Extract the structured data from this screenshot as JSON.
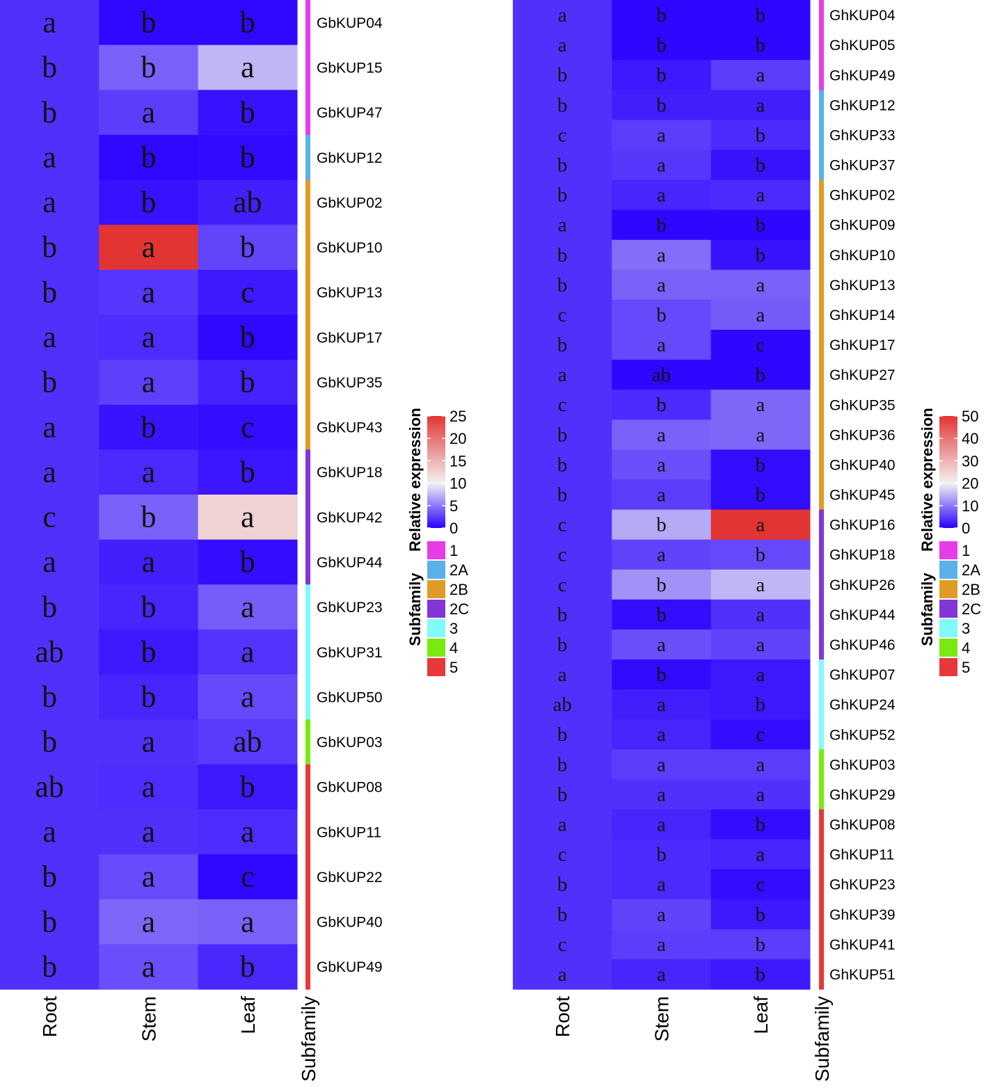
{
  "chart_data": [
    {
      "type": "heatmap",
      "columns": [
        "Root",
        "Stem",
        "Leaf"
      ],
      "annotation_column_label": "Subfamily",
      "color_scale": {
        "title": "Relative expression",
        "min": 0,
        "max": 25,
        "mid": 10,
        "ticks": [
          0,
          5,
          10,
          15,
          20,
          25
        ],
        "colors": {
          "low": "#2a00ff",
          "mid": "#f2f2f2",
          "high": "#e33434"
        }
      },
      "subfamily_legend": {
        "title": "Subfamily",
        "entries": [
          {
            "label": "1",
            "color": "#e83be8"
          },
          {
            "label": "2A",
            "color": "#5ab1ea"
          },
          {
            "label": "2B",
            "color": "#e09b24"
          },
          {
            "label": "2C",
            "color": "#8335d6"
          },
          {
            "label": "3",
            "color": "#7ffbfb"
          },
          {
            "label": "4",
            "color": "#79ea10"
          },
          {
            "label": "5",
            "color": "#e8373a"
          }
        ]
      },
      "rows": [
        {
          "gene": "GbKUP04",
          "subfamily": "1",
          "values": [
            2.0,
            0.3,
            0.3
          ],
          "letters": [
            "a",
            "b",
            "b"
          ]
        },
        {
          "gene": "GbKUP15",
          "subfamily": "1",
          "values": [
            2.0,
            4.0,
            7.5
          ],
          "letters": [
            "b",
            "b",
            "a"
          ]
        },
        {
          "gene": "GbKUP47",
          "subfamily": "1",
          "values": [
            2.0,
            2.5,
            0.7
          ],
          "letters": [
            "b",
            "a",
            "b"
          ]
        },
        {
          "gene": "GbKUP12",
          "subfamily": "2A",
          "values": [
            2.0,
            0.3,
            0.4
          ],
          "letters": [
            "a",
            "b",
            "b"
          ]
        },
        {
          "gene": "GbKUP02",
          "subfamily": "2B",
          "values": [
            2.0,
            0.7,
            1.3
          ],
          "letters": [
            "a",
            "b",
            "ab"
          ]
        },
        {
          "gene": "GbKUP10",
          "subfamily": "2B",
          "values": [
            2.0,
            25.0,
            2.8
          ],
          "letters": [
            "b",
            "a",
            "b"
          ]
        },
        {
          "gene": "GbKUP13",
          "subfamily": "2B",
          "values": [
            2.0,
            2.2,
            1.0
          ],
          "letters": [
            "b",
            "a",
            "c"
          ]
        },
        {
          "gene": "GbKUP17",
          "subfamily": "2B",
          "values": [
            2.0,
            1.8,
            0.3
          ],
          "letters": [
            "a",
            "a",
            "b"
          ]
        },
        {
          "gene": "GbKUP35",
          "subfamily": "2B",
          "values": [
            2.0,
            2.6,
            1.4
          ],
          "letters": [
            "b",
            "a",
            "b"
          ]
        },
        {
          "gene": "GbKUP43",
          "subfamily": "2B",
          "values": [
            2.0,
            0.8,
            0.5
          ],
          "letters": [
            "a",
            "b",
            "c"
          ]
        },
        {
          "gene": "GbKUP18",
          "subfamily": "2C",
          "values": [
            2.0,
            1.7,
            0.9
          ],
          "letters": [
            "a",
            "a",
            "b"
          ]
        },
        {
          "gene": "GbKUP42",
          "subfamily": "2C",
          "values": [
            2.0,
            4.0,
            12.5
          ],
          "letters": [
            "c",
            "b",
            "a"
          ]
        },
        {
          "gene": "GbKUP44",
          "subfamily": "2C",
          "values": [
            2.0,
            1.3,
            0.5
          ],
          "letters": [
            "a",
            "a",
            "b"
          ]
        },
        {
          "gene": "GbKUP23",
          "subfamily": "3",
          "values": [
            2.0,
            1.5,
            3.8
          ],
          "letters": [
            "b",
            "b",
            "a"
          ]
        },
        {
          "gene": "GbKUP31",
          "subfamily": "3",
          "values": [
            2.0,
            1.0,
            2.1
          ],
          "letters": [
            "ab",
            "b",
            "a"
          ]
        },
        {
          "gene": "GbKUP50",
          "subfamily": "3",
          "values": [
            2.0,
            1.5,
            3.0
          ],
          "letters": [
            "b",
            "b",
            "a"
          ]
        },
        {
          "gene": "GbKUP03",
          "subfamily": "4",
          "values": [
            2.0,
            2.0,
            2.4
          ],
          "letters": [
            "b",
            "a",
            "ab"
          ]
        },
        {
          "gene": "GbKUP08",
          "subfamily": "5",
          "values": [
            2.0,
            1.8,
            1.0
          ],
          "letters": [
            "ab",
            "a",
            "b"
          ]
        },
        {
          "gene": "GbKUP11",
          "subfamily": "5",
          "values": [
            2.0,
            2.0,
            1.8
          ],
          "letters": [
            "a",
            "a",
            "a"
          ]
        },
        {
          "gene": "GbKUP22",
          "subfamily": "5",
          "values": [
            2.0,
            3.1,
            0.3
          ],
          "letters": [
            "b",
            "a",
            "c"
          ]
        },
        {
          "gene": "GbKUP40",
          "subfamily": "5",
          "values": [
            2.0,
            4.2,
            4.0
          ],
          "letters": [
            "b",
            "a",
            "a"
          ]
        },
        {
          "gene": "GbKUP49",
          "subfamily": "5",
          "values": [
            2.0,
            3.2,
            1.6
          ],
          "letters": [
            "b",
            "a",
            "b"
          ]
        }
      ]
    },
    {
      "type": "heatmap",
      "columns": [
        "Root",
        "Stem",
        "Leaf"
      ],
      "annotation_column_label": "Subfamily",
      "color_scale": {
        "title": "Relative expression",
        "min": 0,
        "max": 50,
        "mid": 20,
        "ticks": [
          0,
          10,
          20,
          30,
          40,
          50
        ],
        "colors": {
          "low": "#2a00ff",
          "mid": "#f2f2f2",
          "high": "#e33434"
        }
      },
      "subfamily_legend": {
        "title": "Subfamily",
        "entries": [
          {
            "label": "1",
            "color": "#e83be8"
          },
          {
            "label": "2A",
            "color": "#5ab1ea"
          },
          {
            "label": "2B",
            "color": "#e09b24"
          },
          {
            "label": "2C",
            "color": "#8335d6"
          },
          {
            "label": "3",
            "color": "#7ffbfb"
          },
          {
            "label": "4",
            "color": "#79ea10"
          },
          {
            "label": "5",
            "color": "#e8373a"
          }
        ]
      },
      "rows": [
        {
          "gene": "GhKUP04",
          "subfamily": "1",
          "values": [
            4.0,
            0.5,
            0.5
          ],
          "letters": [
            "a",
            "b",
            "b"
          ]
        },
        {
          "gene": "GhKUP05",
          "subfamily": "1",
          "values": [
            4.0,
            0.5,
            0.5
          ],
          "letters": [
            "a",
            "b",
            "b"
          ]
        },
        {
          "gene": "GhKUP49",
          "subfamily": "1",
          "values": [
            4.0,
            2.0,
            5.0
          ],
          "letters": [
            "b",
            "b",
            "a"
          ]
        },
        {
          "gene": "GhKUP12",
          "subfamily": "2A",
          "values": [
            4.0,
            2.5,
            2.5
          ],
          "letters": [
            "b",
            "b",
            "a"
          ]
        },
        {
          "gene": "GhKUP33",
          "subfamily": "2A",
          "values": [
            4.0,
            5.0,
            3.5
          ],
          "letters": [
            "c",
            "a",
            "b"
          ]
        },
        {
          "gene": "GhKUP37",
          "subfamily": "2A",
          "values": [
            4.0,
            4.5,
            1.5
          ],
          "letters": [
            "b",
            "a",
            "b"
          ]
        },
        {
          "gene": "GhKUP02",
          "subfamily": "2B",
          "values": [
            4.0,
            3.0,
            3.5
          ],
          "letters": [
            "b",
            "a",
            "a"
          ]
        },
        {
          "gene": "GhKUP09",
          "subfamily": "2B",
          "values": [
            4.0,
            0.5,
            0.5
          ],
          "letters": [
            "a",
            "b",
            "b"
          ]
        },
        {
          "gene": "GhKUP10",
          "subfamily": "2B",
          "values": [
            4.0,
            9.0,
            1.5
          ],
          "letters": [
            "b",
            "a",
            "b"
          ]
        },
        {
          "gene": "GhKUP13",
          "subfamily": "2B",
          "values": [
            4.0,
            8.0,
            8.0
          ],
          "letters": [
            "b",
            "a",
            "a"
          ]
        },
        {
          "gene": "GhKUP14",
          "subfamily": "2B",
          "values": [
            4.0,
            6.0,
            7.5
          ],
          "letters": [
            "c",
            "b",
            "a"
          ]
        },
        {
          "gene": "GhKUP17",
          "subfamily": "2B",
          "values": [
            4.0,
            6.0,
            0.5
          ],
          "letters": [
            "b",
            "a",
            "c"
          ]
        },
        {
          "gene": "GhKUP27",
          "subfamily": "2B",
          "values": [
            4.0,
            0.5,
            0.5
          ],
          "letters": [
            "a",
            "ab",
            "b"
          ]
        },
        {
          "gene": "GhKUP35",
          "subfamily": "2B",
          "values": [
            4.0,
            3.5,
            8.5
          ],
          "letters": [
            "c",
            "b",
            "a"
          ]
        },
        {
          "gene": "GhKUP36",
          "subfamily": "2B",
          "values": [
            4.0,
            8.0,
            8.5
          ],
          "letters": [
            "b",
            "a",
            "a"
          ]
        },
        {
          "gene": "GhKUP40",
          "subfamily": "2B",
          "values": [
            4.0,
            6.5,
            1.0
          ],
          "letters": [
            "b",
            "a",
            "b"
          ]
        },
        {
          "gene": "GhKUP45",
          "subfamily": "2B",
          "values": [
            4.0,
            5.0,
            1.0
          ],
          "letters": [
            "b",
            "a",
            "b"
          ]
        },
        {
          "gene": "GhKUP16",
          "subfamily": "2C",
          "values": [
            4.0,
            14.0,
            50.0
          ],
          "letters": [
            "c",
            "b",
            "a"
          ]
        },
        {
          "gene": "GhKUP18",
          "subfamily": "2C",
          "values": [
            4.0,
            5.5,
            6.0
          ],
          "letters": [
            "c",
            "a",
            "b"
          ]
        },
        {
          "gene": "GhKUP26",
          "subfamily": "2C",
          "values": [
            4.0,
            12.0,
            15.0
          ],
          "letters": [
            "c",
            "b",
            "a"
          ]
        },
        {
          "gene": "GhKUP44",
          "subfamily": "2C",
          "values": [
            4.0,
            1.0,
            4.0
          ],
          "letters": [
            "b",
            "b",
            "a"
          ]
        },
        {
          "gene": "GhKUP46",
          "subfamily": "2C",
          "values": [
            4.0,
            6.5,
            5.5
          ],
          "letters": [
            "b",
            "a",
            "a"
          ]
        },
        {
          "gene": "GhKUP07",
          "subfamily": "3",
          "values": [
            4.0,
            0.8,
            2.0
          ],
          "letters": [
            "a",
            "b",
            "a"
          ]
        },
        {
          "gene": "GhKUP24",
          "subfamily": "3",
          "values": [
            4.0,
            2.5,
            2.0
          ],
          "letters": [
            "ab",
            "a",
            "b"
          ]
        },
        {
          "gene": "GhKUP52",
          "subfamily": "3",
          "values": [
            4.0,
            3.0,
            1.0
          ],
          "letters": [
            "b",
            "a",
            "c"
          ]
        },
        {
          "gene": "GhKUP03",
          "subfamily": "4",
          "values": [
            4.0,
            5.0,
            5.0
          ],
          "letters": [
            "b",
            "a",
            "a"
          ]
        },
        {
          "gene": "GhKUP29",
          "subfamily": "4",
          "values": [
            4.0,
            4.0,
            4.0
          ],
          "letters": [
            "b",
            "a",
            "a"
          ]
        },
        {
          "gene": "GhKUP08",
          "subfamily": "5",
          "values": [
            4.0,
            3.0,
            1.0
          ],
          "letters": [
            "a",
            "a",
            "b"
          ]
        },
        {
          "gene": "GhKUP11",
          "subfamily": "5",
          "values": [
            4.0,
            3.5,
            3.0
          ],
          "letters": [
            "c",
            "b",
            "a"
          ]
        },
        {
          "gene": "GhKUP23",
          "subfamily": "5",
          "values": [
            4.0,
            3.5,
            1.0
          ],
          "letters": [
            "b",
            "a",
            "c"
          ]
        },
        {
          "gene": "GhKUP39",
          "subfamily": "5",
          "values": [
            4.0,
            5.5,
            2.0
          ],
          "letters": [
            "b",
            "a",
            "b"
          ]
        },
        {
          "gene": "GhKUP41",
          "subfamily": "5",
          "values": [
            4.0,
            5.0,
            5.0
          ],
          "letters": [
            "c",
            "a",
            "b"
          ]
        },
        {
          "gene": "GhKUP51",
          "subfamily": "5",
          "values": [
            4.0,
            3.0,
            2.0
          ],
          "letters": [
            "a",
            "a",
            "b"
          ]
        }
      ]
    }
  ]
}
